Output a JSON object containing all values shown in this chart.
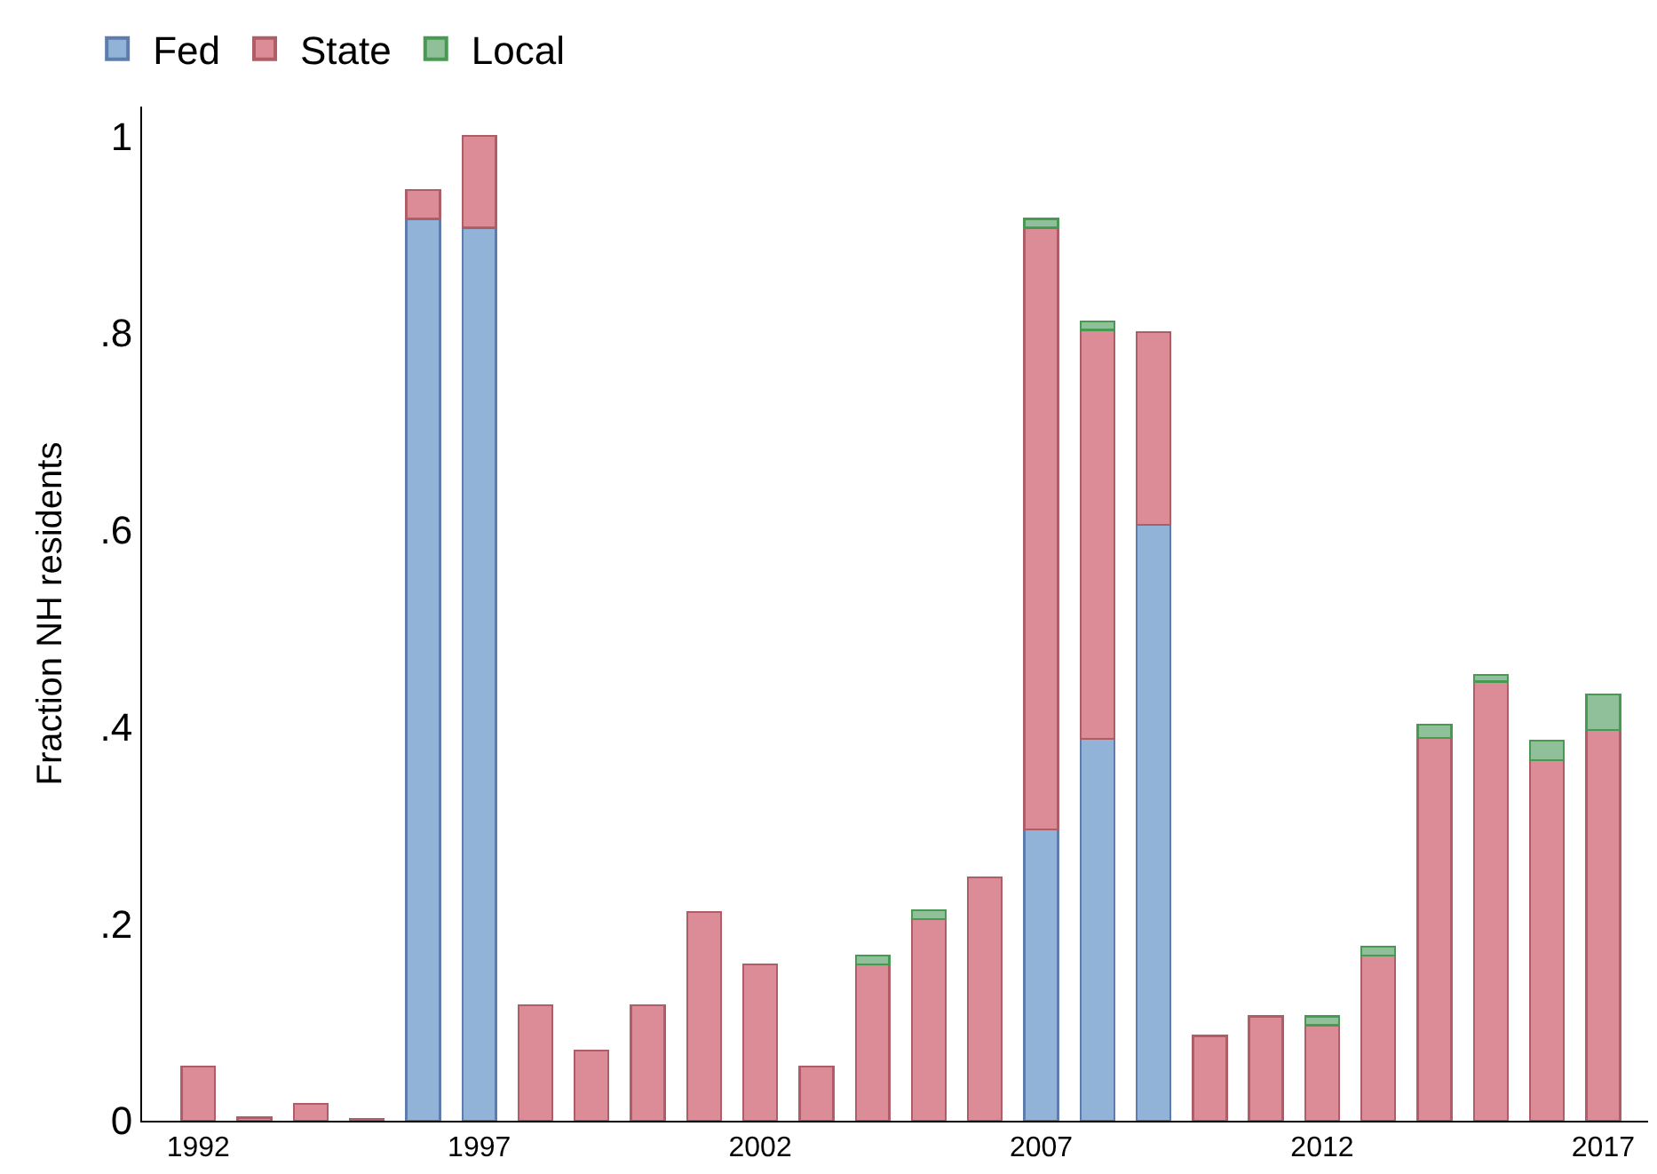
{
  "chart_data": {
    "type": "bar",
    "stacked": true,
    "ylabel": "Fraction NH residents",
    "x": [
      1992,
      1993,
      1994,
      1995,
      1996,
      1997,
      1998,
      1999,
      2000,
      2001,
      2002,
      2003,
      2004,
      2005,
      2006,
      2007,
      2008,
      2009,
      2010,
      2011,
      2012,
      2013,
      2014,
      2015,
      2016,
      2017
    ],
    "series": [
      {
        "name": "Fed",
        "color": "#91b3d7",
        "values": [
          null,
          null,
          null,
          null,
          0.916,
          0.907,
          null,
          null,
          null,
          null,
          null,
          null,
          null,
          null,
          null,
          0.296,
          0.388,
          0.605,
          null,
          null,
          null,
          null,
          null,
          null,
          null,
          null
        ]
      },
      {
        "name": "State",
        "color": "#db8c96",
        "values": [
          0.055,
          0.003,
          0.017,
          0.002,
          0.029,
          0.093,
          0.117,
          0.071,
          0.117,
          0.212,
          0.159,
          0.055,
          0.159,
          0.205,
          0.247,
          0.611,
          0.415,
          0.196,
          0.086,
          0.106,
          0.097,
          0.168,
          0.389,
          0.446,
          0.366,
          0.397
        ]
      },
      {
        "name": "Local",
        "color": "#90c09a",
        "values": [
          null,
          null,
          null,
          null,
          null,
          null,
          null,
          null,
          null,
          null,
          null,
          null,
          0.009,
          0.009,
          null,
          0.009,
          0.009,
          null,
          null,
          null,
          0.009,
          0.009,
          0.013,
          0.007,
          0.02,
          0.036
        ]
      }
    ],
    "xlim": [
      1991,
      2017.8
    ],
    "xticks": [
      1992,
      1997,
      2002,
      2007,
      2012,
      2017
    ],
    "ylim": [
      0,
      1.03
    ],
    "yticks": [
      0,
      {
        "value": 0.2,
        "label": ".2"
      },
      {
        "value": 0.4,
        "label": ".4"
      },
      {
        "value": 0.6,
        "label": ".6"
      },
      {
        "value": 0.8,
        "label": ".8"
      },
      1
    ],
    "legend": "top left"
  }
}
